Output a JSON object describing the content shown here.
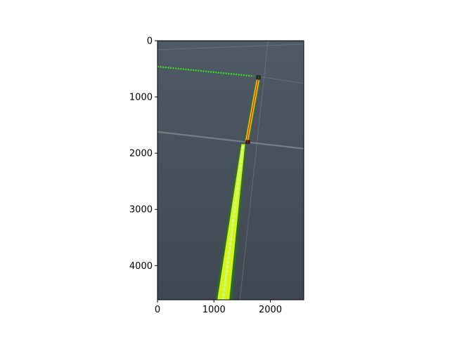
{
  "chart_data": {
    "type": "image",
    "title": "",
    "xlabel": "",
    "ylabel": "",
    "xlim": [
      0,
      2592
    ],
    "ylim": [
      4608,
      0
    ],
    "x_ticks": [
      0,
      1000,
      2000
    ],
    "y_ticks": [
      0,
      1000,
      2000,
      3000,
      4000
    ],
    "grid": false,
    "legend": false,
    "overlays": [
      {
        "name": "horizontal-green-dotted-line",
        "color": "#39e619",
        "points": [
          [
            0,
            460
          ],
          [
            1700,
            630
          ]
        ]
      },
      {
        "name": "near-segment-glow",
        "color": "#7fff2a",
        "points": [
          [
            1160,
            4608
          ],
          [
            1520,
            1840
          ]
        ]
      },
      {
        "name": "far-segment-red-line",
        "color": "#ff2200",
        "points": [
          [
            1580,
            1800
          ],
          [
            1780,
            700
          ]
        ]
      },
      {
        "name": "far-segment-yellow-border",
        "color": "#e6e600",
        "points": [
          [
            1580,
            1800
          ],
          [
            1780,
            700
          ]
        ]
      }
    ],
    "markers": [
      {
        "name": "junction-marker-far",
        "color": "#1a6b1a",
        "point": [
          1790,
          650
        ]
      },
      {
        "name": "junction-marker-near",
        "color": "#cc0000",
        "point": [
          1600,
          1800
        ]
      }
    ]
  },
  "colors": {
    "floor": "#4a5560",
    "floor_dark": "#3d4650",
    "seam": "#8a9098"
  }
}
